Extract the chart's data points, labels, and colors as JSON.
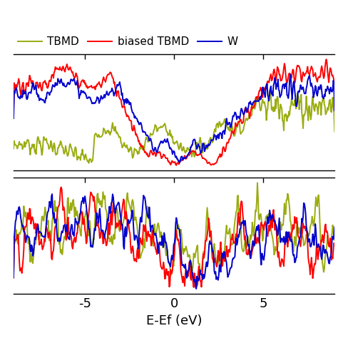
{
  "xlabel": "E-Ef (eV)",
  "legend_labels": [
    "TBMD",
    "biased TBMD",
    "W"
  ],
  "legend_colors": [
    "#9aac10",
    "#ff0000",
    "#0000cc"
  ],
  "xlim": [
    -9,
    9
  ],
  "xticks": [
    -5,
    0,
    5
  ],
  "xticklabels": [
    "-5",
    "0",
    "5"
  ],
  "background_color": "#ffffff",
  "linewidth": 1.4,
  "figsize": [
    4.74,
    4.74
  ],
  "dpi": 100
}
